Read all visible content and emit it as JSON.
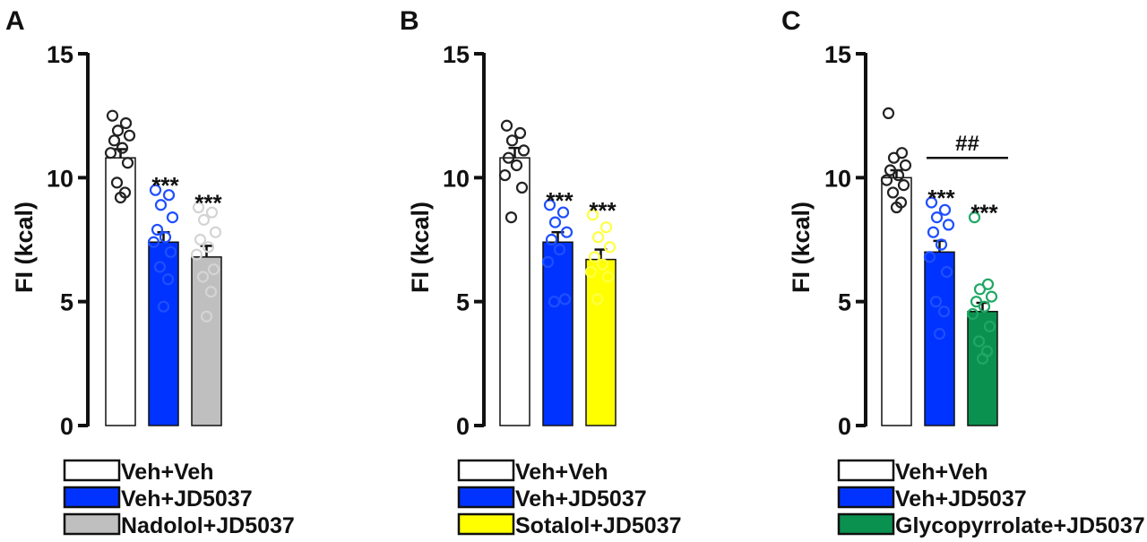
{
  "chart_data": [
    {
      "type": "bar",
      "panel_label": "A",
      "ylabel": "FI (kcal)",
      "ylim": [
        0,
        15
      ],
      "yticks": [
        0,
        5,
        10,
        15
      ],
      "categories": [
        "Veh+Veh",
        "Veh+JD5037",
        "Nadolol+JD5037"
      ],
      "values": [
        10.8,
        7.4,
        6.8
      ],
      "errors": [
        0.35,
        0.4,
        0.45
      ],
      "colors": [
        "#ffffff",
        "#0033ff",
        "#bfbfbf"
      ],
      "point_colors": [
        "#222222",
        "#1f4fff",
        "#d4d4d4"
      ],
      "significance": [
        "",
        "***",
        "***"
      ],
      "points": [
        [
          12.5,
          12.2,
          11.9,
          11.7,
          11.5,
          11.2,
          11.0,
          10.6,
          9.8,
          9.4,
          9.2
        ],
        [
          9.5,
          9.3,
          8.9,
          8.4,
          7.9,
          7.6,
          7.4,
          7.0,
          6.4,
          5.9,
          4.8
        ],
        [
          8.8,
          8.6,
          8.3,
          7.8,
          7.5,
          7.2,
          6.9,
          6.3,
          6.0,
          5.4,
          4.4
        ]
      ]
    },
    {
      "type": "bar",
      "panel_label": "B",
      "ylabel": "FI (kcal)",
      "ylim": [
        0,
        15
      ],
      "yticks": [
        0,
        5,
        10,
        15
      ],
      "categories": [
        "Veh+Veh",
        "Veh+JD5037",
        "Sotalol+JD5037"
      ],
      "values": [
        10.8,
        7.4,
        6.7
      ],
      "errors": [
        0.4,
        0.4,
        0.4
      ],
      "colors": [
        "#ffffff",
        "#0033ff",
        "#ffff00"
      ],
      "point_colors": [
        "#222222",
        "#1f4fff",
        "#ffff44"
      ],
      "significance": [
        "",
        "***",
        "***"
      ],
      "points": [
        [
          12.1,
          11.8,
          11.5,
          11.1,
          10.8,
          10.5,
          10.1,
          9.6,
          8.4
        ],
        [
          8.9,
          8.6,
          8.2,
          7.8,
          7.5,
          7.1,
          6.6,
          5.1,
          5.0
        ],
        [
          8.5,
          8.0,
          7.6,
          7.2,
          6.8,
          6.5,
          6.2,
          6.0,
          5.1
        ]
      ]
    },
    {
      "type": "bar",
      "panel_label": "C",
      "ylabel": "FI (kcal)",
      "ylim": [
        0,
        15
      ],
      "yticks": [
        0,
        5,
        10,
        15
      ],
      "categories": [
        "Veh+Veh",
        "Veh+JD5037",
        "Glycopyrrolate+JD5037"
      ],
      "values": [
        10.0,
        7.0,
        4.6
      ],
      "errors": [
        0.3,
        0.45,
        0.35
      ],
      "colors": [
        "#ffffff",
        "#0033ff",
        "#0a9150"
      ],
      "point_colors": [
        "#222222",
        "#1f4fff",
        "#1fa864"
      ],
      "significance": [
        "",
        "***",
        "***"
      ],
      "bracket": {
        "from": 1,
        "to": 2,
        "label": "##",
        "y": 10.8
      },
      "points": [
        [
          12.6,
          11.0,
          10.8,
          10.5,
          10.3,
          10.1,
          9.9,
          9.7,
          9.4,
          9.0,
          8.8
        ],
        [
          9.0,
          8.7,
          8.4,
          8.1,
          7.8,
          7.3,
          6.8,
          6.2,
          5.0,
          4.6,
          3.7
        ],
        [
          8.4,
          5.7,
          5.5,
          5.2,
          5.0,
          4.8,
          4.5,
          4.0,
          3.4,
          3.0,
          2.7
        ]
      ]
    }
  ]
}
